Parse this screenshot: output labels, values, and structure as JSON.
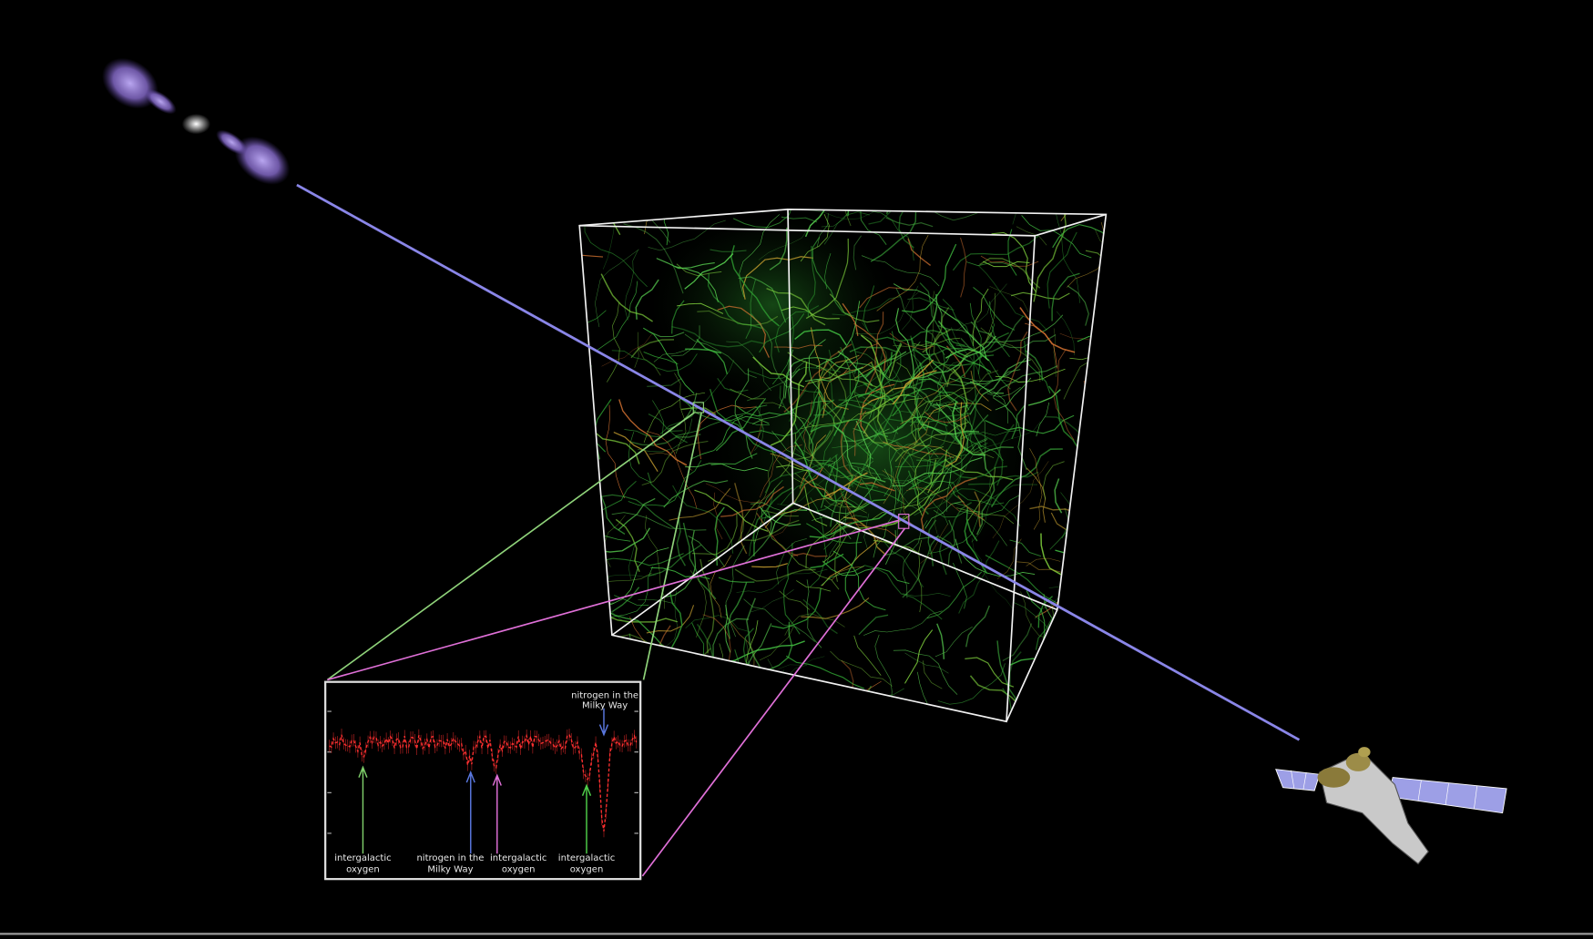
{
  "inset": {
    "top_label": [
      "nitrogen in the",
      "Milky Way"
    ],
    "labels": [
      [
        "intergalactic",
        "oxygen"
      ],
      [
        "nitrogen in the",
        "Milky Way"
      ],
      [
        "intergalactic",
        "oxygen"
      ],
      [
        "intergalactic",
        "oxygen"
      ]
    ]
  }
}
